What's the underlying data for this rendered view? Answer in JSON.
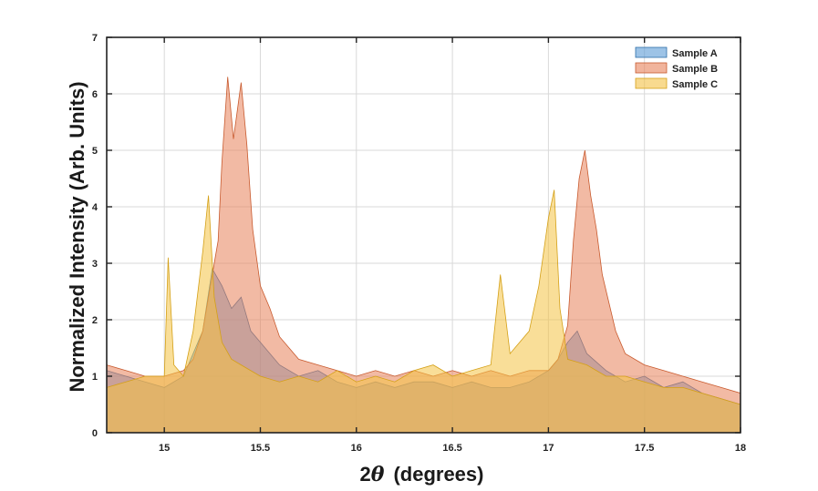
{
  "chart_data": {
    "type": "area",
    "xlabel_prefix": "2",
    "xlabel_symbol": "θ",
    "xlabel_suffix": "(degrees)",
    "ylabel": "Normalized Intensity (Arb. Units)",
    "xlim": [
      14.7,
      18
    ],
    "ylim": [
      0,
      7
    ],
    "x_ticks": [
      15,
      15.5,
      16,
      16.5,
      17,
      17.5,
      18
    ],
    "x_tick_labels": [
      "15",
      "15.5",
      "16",
      "16.5",
      "17",
      "17.5",
      "18"
    ],
    "y_ticks": [
      0,
      1,
      2,
      3,
      4,
      5,
      6,
      7
    ],
    "y_tick_labels": [
      "0",
      "1",
      "2",
      "3",
      "4",
      "5",
      "6",
      "7"
    ],
    "grid": true,
    "legend_position": "top-right",
    "series": [
      {
        "name": "Sample A",
        "color": "#5b9bd5",
        "edge": "#2f6fa8",
        "x": [
          14.7,
          14.8,
          14.9,
          15.0,
          15.1,
          15.15,
          15.2,
          15.25,
          15.3,
          15.35,
          15.4,
          15.45,
          15.5,
          15.6,
          15.7,
          15.8,
          15.9,
          16.0,
          16.1,
          16.2,
          16.3,
          16.4,
          16.5,
          16.6,
          16.7,
          16.8,
          16.9,
          17.0,
          17.05,
          17.1,
          17.15,
          17.2,
          17.3,
          17.4,
          17.5,
          17.6,
          17.7,
          17.8,
          17.9,
          18.0
        ],
        "values": [
          1.1,
          1.0,
          0.9,
          0.8,
          1.0,
          1.4,
          1.8,
          2.9,
          2.6,
          2.2,
          2.4,
          1.8,
          1.6,
          1.2,
          1.0,
          1.1,
          0.9,
          0.8,
          0.9,
          0.8,
          0.9,
          0.9,
          0.8,
          0.9,
          0.8,
          0.8,
          0.9,
          1.1,
          1.3,
          1.6,
          1.8,
          1.4,
          1.1,
          0.9,
          1.0,
          0.8,
          0.9,
          0.7,
          0.6,
          0.5
        ]
      },
      {
        "name": "Sample B",
        "color": "#e8825a",
        "edge": "#c85a2e",
        "x": [
          14.7,
          14.8,
          14.9,
          15.0,
          15.1,
          15.15,
          15.2,
          15.25,
          15.28,
          15.3,
          15.33,
          15.36,
          15.4,
          15.43,
          15.46,
          15.5,
          15.55,
          15.6,
          15.7,
          15.8,
          15.9,
          16.0,
          16.1,
          16.2,
          16.3,
          16.4,
          16.5,
          16.6,
          16.7,
          16.8,
          16.9,
          17.0,
          17.05,
          17.1,
          17.13,
          17.16,
          17.19,
          17.22,
          17.25,
          17.28,
          17.35,
          17.4,
          17.5,
          17.6,
          17.7,
          17.8,
          17.9,
          18.0
        ],
        "values": [
          1.2,
          1.1,
          1.0,
          1.0,
          1.1,
          1.3,
          1.8,
          2.8,
          3.4,
          4.8,
          6.3,
          5.2,
          6.2,
          5.1,
          3.6,
          2.6,
          2.2,
          1.7,
          1.3,
          1.2,
          1.1,
          1.0,
          1.1,
          1.0,
          1.1,
          1.0,
          1.1,
          1.0,
          1.1,
          1.0,
          1.1,
          1.1,
          1.3,
          1.9,
          3.4,
          4.5,
          5.0,
          4.2,
          3.6,
          2.8,
          1.8,
          1.4,
          1.2,
          1.1,
          1.0,
          0.9,
          0.8,
          0.7
        ]
      },
      {
        "name": "Sample C",
        "color": "#f4c244",
        "edge": "#d4a017",
        "x": [
          14.7,
          14.8,
          14.9,
          15.0,
          15.02,
          15.05,
          15.1,
          15.15,
          15.2,
          15.23,
          15.26,
          15.3,
          15.35,
          15.4,
          15.5,
          15.6,
          15.7,
          15.8,
          15.9,
          16.0,
          16.1,
          16.2,
          16.3,
          16.4,
          16.5,
          16.6,
          16.7,
          16.75,
          16.8,
          16.9,
          16.95,
          17.0,
          17.03,
          17.06,
          17.1,
          17.2,
          17.3,
          17.4,
          17.5,
          17.6,
          17.7,
          17.8,
          17.9,
          18.0
        ],
        "values": [
          0.8,
          0.9,
          1.0,
          1.0,
          3.1,
          1.2,
          1.0,
          1.8,
          3.2,
          4.2,
          2.4,
          1.6,
          1.3,
          1.2,
          1.0,
          0.9,
          1.0,
          0.9,
          1.1,
          0.9,
          1.0,
          0.9,
          1.1,
          1.2,
          1.0,
          1.1,
          1.2,
          2.8,
          1.4,
          1.8,
          2.6,
          3.8,
          4.3,
          2.2,
          1.3,
          1.2,
          1.0,
          1.0,
          0.9,
          0.8,
          0.8,
          0.7,
          0.6,
          0.5
        ]
      }
    ]
  }
}
